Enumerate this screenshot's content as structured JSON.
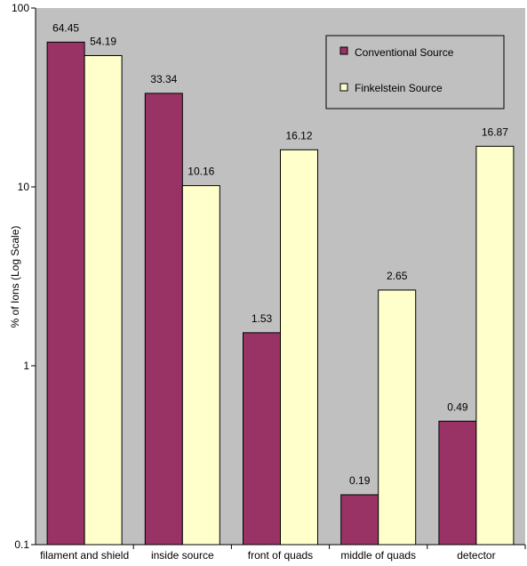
{
  "chart_data": {
    "type": "bar",
    "title": "",
    "xlabel": "",
    "ylabel": "% of Ions (Log Scale)",
    "yscale": "log",
    "ylim": [
      0.1,
      100
    ],
    "yticks": [
      "0.1",
      "1",
      "10",
      "100"
    ],
    "grid": false,
    "legend_position": "top-right",
    "plot_background": "#c0c0c0",
    "categories": [
      "filament and shield",
      "inside source",
      "front of quads",
      "middle of quads",
      "detector"
    ],
    "series": [
      {
        "name": "Conventional Source",
        "color": "#993366",
        "values": [
          64.45,
          33.34,
          1.53,
          0.19,
          0.49
        ],
        "labels": [
          "64.45",
          "33.34",
          "1.53",
          "0.19",
          "0.49"
        ]
      },
      {
        "name": "Finkelstein Source",
        "color": "#ffffcc",
        "values": [
          54.19,
          10.16,
          16.12,
          2.65,
          16.87
        ],
        "labels": [
          "54.19",
          "10.16",
          "16.12",
          "2.65",
          "16.87"
        ]
      }
    ]
  }
}
